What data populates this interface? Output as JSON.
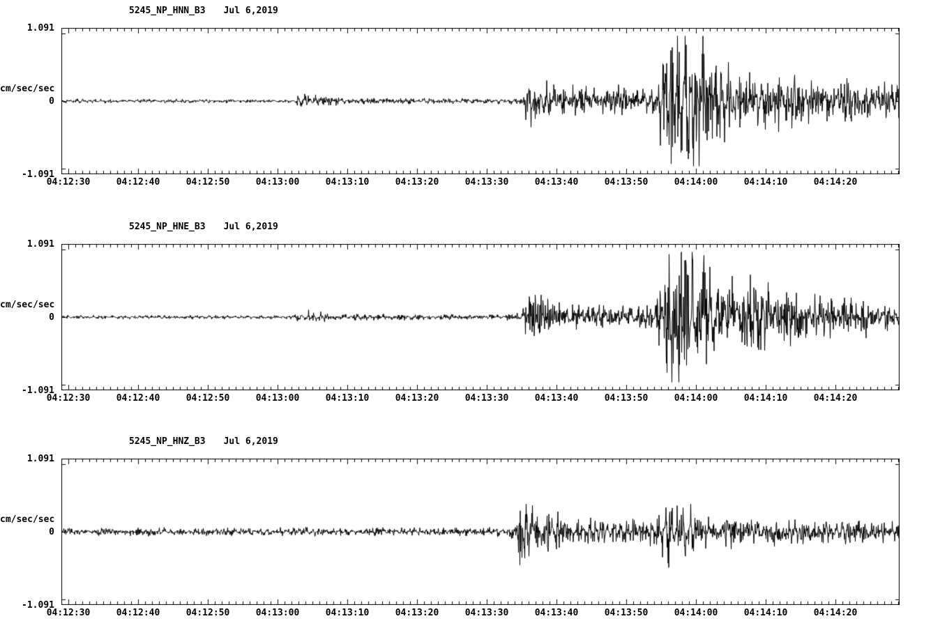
{
  "page": {
    "background": "#ffffff",
    "axis_color": "#000000"
  },
  "chart_data": [
    {
      "type": "line",
      "subtype": "seismogram",
      "title": "5245_NP_HNN_B3",
      "date_label": "Jul 6,2019",
      "ylabel": "cm/sec/sec",
      "yticks": [
        "1.091",
        "0",
        "-1.091"
      ],
      "ylim": [
        -1.091,
        1.091
      ],
      "xtick_labels": [
        "04:12:30",
        "04:12:40",
        "04:12:50",
        "04:13:00",
        "04:13:10",
        "04:13:20",
        "04:13:30",
        "04:13:40",
        "04:13:50",
        "04:14:00",
        "04:14:10",
        "04:14:20"
      ],
      "xtick_interval_seconds": 10,
      "duration_seconds": 120.2,
      "trace_color": "#000000",
      "grid": false,
      "envelope_t_amp": [
        [
          0,
          0.022
        ],
        [
          33,
          0.022
        ],
        [
          34.5,
          0.09
        ],
        [
          37,
          0.06
        ],
        [
          40,
          0.04
        ],
        [
          46,
          0.03
        ],
        [
          63,
          0.026
        ],
        [
          66,
          0.05
        ],
        [
          66.8,
          0.34
        ],
        [
          68.5,
          0.27
        ],
        [
          71,
          0.17
        ],
        [
          76,
          0.14
        ],
        [
          80,
          0.16
        ],
        [
          83,
          0.13
        ],
        [
          85,
          0.18
        ],
        [
          86,
          0.45
        ],
        [
          87.5,
          0.93
        ],
        [
          89.5,
          0.8
        ],
        [
          91,
          0.88
        ],
        [
          92.5,
          0.55
        ],
        [
          95,
          0.45
        ],
        [
          97,
          0.38
        ],
        [
          100,
          0.3
        ],
        [
          103,
          0.34
        ],
        [
          106,
          0.25
        ],
        [
          109,
          0.2
        ],
        [
          112,
          0.27
        ],
        [
          115,
          0.18
        ],
        [
          118,
          0.22
        ],
        [
          120.2,
          0.2
        ]
      ]
    },
    {
      "type": "line",
      "subtype": "seismogram",
      "title": "5245_NP_HNE_B3",
      "date_label": "Jul 6,2019",
      "ylabel": "cm/sec/sec",
      "yticks": [
        "1.091",
        "0",
        "-1.091"
      ],
      "ylim": [
        -1.091,
        1.091
      ],
      "xtick_labels": [
        "04:12:30",
        "04:12:40",
        "04:12:50",
        "04:13:00",
        "04:13:10",
        "04:13:20",
        "04:13:30",
        "04:13:40",
        "04:13:50",
        "04:14:00",
        "04:14:10",
        "04:14:20"
      ],
      "xtick_interval_seconds": 10,
      "duration_seconds": 120.2,
      "trace_color": "#000000",
      "grid": false,
      "envelope_t_amp": [
        [
          0,
          0.02
        ],
        [
          33,
          0.02
        ],
        [
          34.5,
          0.08
        ],
        [
          37,
          0.05
        ],
        [
          41,
          0.035
        ],
        [
          63,
          0.025
        ],
        [
          66,
          0.05
        ],
        [
          67,
          0.3
        ],
        [
          69,
          0.22
        ],
        [
          72,
          0.16
        ],
        [
          77,
          0.13
        ],
        [
          82,
          0.14
        ],
        [
          85,
          0.17
        ],
        [
          86,
          0.4
        ],
        [
          87.5,
          0.9
        ],
        [
          88.5,
          0.95
        ],
        [
          90,
          0.75
        ],
        [
          92,
          0.6
        ],
        [
          94,
          0.5
        ],
        [
          96,
          0.55
        ],
        [
          98,
          0.42
        ],
        [
          100,
          0.48
        ],
        [
          103,
          0.32
        ],
        [
          106,
          0.28
        ],
        [
          109,
          0.22
        ],
        [
          112,
          0.18
        ],
        [
          115,
          0.2
        ],
        [
          118,
          0.17
        ],
        [
          120.2,
          0.17
        ]
      ]
    },
    {
      "type": "line",
      "subtype": "seismogram",
      "title": "5245_NP_HNZ_B3",
      "date_label": "Jul 6,2019",
      "ylabel": "cm/sec/sec",
      "yticks": [
        "1.091",
        "0",
        "-1.091"
      ],
      "ylim": [
        -1.091,
        1.091
      ],
      "xtick_labels": [
        "04:12:30",
        "04:12:40",
        "04:12:50",
        "04:13:00",
        "04:13:10",
        "04:13:20",
        "04:13:30",
        "04:13:40",
        "04:13:50",
        "04:14:00",
        "04:14:10",
        "04:14:20"
      ],
      "xtick_interval_seconds": 10,
      "duration_seconds": 120.2,
      "trace_color": "#000000",
      "grid": false,
      "envelope_t_amp": [
        [
          0,
          0.042
        ],
        [
          30,
          0.042
        ],
        [
          34,
          0.05
        ],
        [
          38,
          0.045
        ],
        [
          60,
          0.045
        ],
        [
          64,
          0.05
        ],
        [
          65.3,
          0.1
        ],
        [
          65.8,
          0.5
        ],
        [
          66.6,
          0.42
        ],
        [
          67.5,
          0.28
        ],
        [
          69,
          0.2
        ],
        [
          71,
          0.3
        ],
        [
          72,
          0.18
        ],
        [
          74,
          0.15
        ],
        [
          77,
          0.14
        ],
        [
          80,
          0.13
        ],
        [
          83,
          0.13
        ],
        [
          85.5,
          0.18
        ],
        [
          86.8,
          0.36
        ],
        [
          88,
          0.28
        ],
        [
          89.5,
          0.33
        ],
        [
          91,
          0.24
        ],
        [
          93,
          0.18
        ],
        [
          96,
          0.16
        ],
        [
          100,
          0.14
        ],
        [
          104,
          0.13
        ],
        [
          108,
          0.12
        ],
        [
          112,
          0.12
        ],
        [
          116,
          0.11
        ],
        [
          120.2,
          0.11
        ]
      ]
    }
  ]
}
